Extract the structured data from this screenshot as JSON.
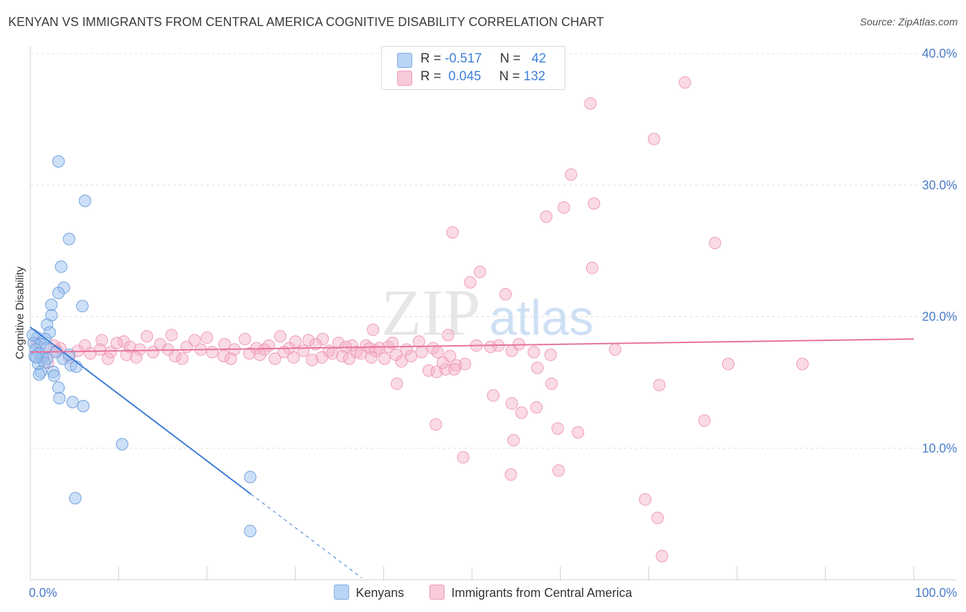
{
  "title": "KENYAN VS IMMIGRANTS FROM CENTRAL AMERICA COGNITIVE DISABILITY CORRELATION CHART",
  "source": "Source: ZipAtlas.com",
  "watermark": {
    "zip": "ZIP",
    "atlas": "atlas"
  },
  "colors": {
    "blue": "#9bc2f0",
    "blue_line": "#3a7ad6",
    "pink": "#f4aec8",
    "pink_line": "#e8709a",
    "tick": "#4a7cc8"
  },
  "legend": {
    "rows": [
      {
        "r_label": "R =",
        "r_value": "-0.517",
        "n_label": "N =",
        "n_value": "42"
      },
      {
        "r_label": "R =",
        "r_value": "0.045",
        "n_label": "N =",
        "n_value": "132"
      }
    ]
  },
  "bottom_legend": {
    "kenyans": "Kenyans",
    "central_america": "Immigrants from Central America"
  },
  "chart_data": {
    "type": "scatter",
    "ylabel": "Cognitive Disability",
    "xlim": [
      0,
      100
    ],
    "ylim": [
      0,
      40
    ],
    "x_tick_labels": [
      "0.0%",
      "100.0%"
    ],
    "y_ticks": [
      10,
      20,
      30,
      40
    ],
    "y_tick_labels": [
      "10.0%",
      "20.0%",
      "30.0%",
      "40.0%"
    ],
    "grid": "horizontal dashed",
    "legend_position": "top-center",
    "series": [
      {
        "name": "Kenyans",
        "trend": {
          "x0": 0,
          "y0": 19.2,
          "x1": 25,
          "y1": 6.5,
          "dash_to_x": 37.5
        },
        "points": [
          [
            3.2,
            31.8
          ],
          [
            6.2,
            28.8
          ],
          [
            4.4,
            25.9
          ],
          [
            3.5,
            23.8
          ],
          [
            3.8,
            22.2
          ],
          [
            3.2,
            21.8
          ],
          [
            2.4,
            20.9
          ],
          [
            5.9,
            20.8
          ],
          [
            2.4,
            20.1
          ],
          [
            1.9,
            19.4
          ],
          [
            2.2,
            18.8
          ],
          [
            0.8,
            18.4
          ],
          [
            1.7,
            18.3
          ],
          [
            0.4,
            18.0
          ],
          [
            1.2,
            17.9
          ],
          [
            0.6,
            17.5
          ],
          [
            1.8,
            17.6
          ],
          [
            1.0,
            17.2
          ],
          [
            0.5,
            17.0
          ],
          [
            1.4,
            16.9
          ],
          [
            1.9,
            16.8
          ],
          [
            3.7,
            16.8
          ],
          [
            4.4,
            17.1
          ],
          [
            0.9,
            16.4
          ],
          [
            1.6,
            16.5
          ],
          [
            4.6,
            16.3
          ],
          [
            5.2,
            16.2
          ],
          [
            1.2,
            15.8
          ],
          [
            2.6,
            15.8
          ],
          [
            1.0,
            15.6
          ],
          [
            2.7,
            15.5
          ],
          [
            3.2,
            14.6
          ],
          [
            3.3,
            13.8
          ],
          [
            4.8,
            13.5
          ],
          [
            6.0,
            13.2
          ],
          [
            10.4,
            10.3
          ],
          [
            5.1,
            6.2
          ],
          [
            24.9,
            7.8
          ],
          [
            24.9,
            3.7
          ],
          [
            0.3,
            18.6
          ],
          [
            2.9,
            17.3
          ],
          [
            0.7,
            16.9
          ]
        ]
      },
      {
        "name": "Immigrants from Central America",
        "trend": {
          "x0": 0,
          "y0": 17.3,
          "x1": 100,
          "y1": 18.3
        },
        "points": [
          [
            74.1,
            37.8
          ],
          [
            63.4,
            36.2
          ],
          [
            70.6,
            33.5
          ],
          [
            61.2,
            30.8
          ],
          [
            63.8,
            28.6
          ],
          [
            60.4,
            28.3
          ],
          [
            58.4,
            27.6
          ],
          [
            47.8,
            26.4
          ],
          [
            77.5,
            25.6
          ],
          [
            63.6,
            23.7
          ],
          [
            50.9,
            23.4
          ],
          [
            49.8,
            22.6
          ],
          [
            53.8,
            21.7
          ],
          [
            38.8,
            19.0
          ],
          [
            47.3,
            18.6
          ],
          [
            16.0,
            18.6
          ],
          [
            13.2,
            18.5
          ],
          [
            28.3,
            18.5
          ],
          [
            20.0,
            18.4
          ],
          [
            24.3,
            18.3
          ],
          [
            33.1,
            18.3
          ],
          [
            8.1,
            18.2
          ],
          [
            18.6,
            18.2
          ],
          [
            31.5,
            18.2
          ],
          [
            10.6,
            18.1
          ],
          [
            30.0,
            18.1
          ],
          [
            34.9,
            18.0
          ],
          [
            38.0,
            17.8
          ],
          [
            9.8,
            18.0
          ],
          [
            14.7,
            17.9
          ],
          [
            22.0,
            17.9
          ],
          [
            27.0,
            17.8
          ],
          [
            32.3,
            17.9
          ],
          [
            36.4,
            17.8
          ],
          [
            40.5,
            17.7
          ],
          [
            6.2,
            17.8
          ],
          [
            11.3,
            17.7
          ],
          [
            17.7,
            17.7
          ],
          [
            25.6,
            17.6
          ],
          [
            29.3,
            17.6
          ],
          [
            35.7,
            17.7
          ],
          [
            38.4,
            17.6
          ],
          [
            45.6,
            17.6
          ],
          [
            52.1,
            17.7
          ],
          [
            3.4,
            17.6
          ],
          [
            7.9,
            17.5
          ],
          [
            12.4,
            17.5
          ],
          [
            15.6,
            17.5
          ],
          [
            19.3,
            17.5
          ],
          [
            23.1,
            17.5
          ],
          [
            26.5,
            17.5
          ],
          [
            30.9,
            17.4
          ],
          [
            33.8,
            17.4
          ],
          [
            36.9,
            17.3
          ],
          [
            39.1,
            17.4
          ],
          [
            42.6,
            17.5
          ],
          [
            44.3,
            17.3
          ],
          [
            5.4,
            17.4
          ],
          [
            9.1,
            17.3
          ],
          [
            13.9,
            17.3
          ],
          [
            20.6,
            17.3
          ],
          [
            24.8,
            17.2
          ],
          [
            28.7,
            17.3
          ],
          [
            34.2,
            17.2
          ],
          [
            37.4,
            17.2
          ],
          [
            41.4,
            17.1
          ],
          [
            46.1,
            17.3
          ],
          [
            1.5,
            17.2
          ],
          [
            6.8,
            17.2
          ],
          [
            10.9,
            17.1
          ],
          [
            16.4,
            17.0
          ],
          [
            21.9,
            17.0
          ],
          [
            26.0,
            17.1
          ],
          [
            29.8,
            16.9
          ],
          [
            33.0,
            16.9
          ],
          [
            35.3,
            17.0
          ],
          [
            38.6,
            16.9
          ],
          [
            43.1,
            17.0
          ],
          [
            4.4,
            16.9
          ],
          [
            8.8,
            16.8
          ],
          [
            12.0,
            16.9
          ],
          [
            17.2,
            16.8
          ],
          [
            22.7,
            16.8
          ],
          [
            27.7,
            16.8
          ],
          [
            31.9,
            16.7
          ],
          [
            36.1,
            16.8
          ],
          [
            40.1,
            16.8
          ],
          [
            2.0,
            16.5
          ],
          [
            48.2,
            16.3
          ],
          [
            49.2,
            16.4
          ],
          [
            47.5,
            17.0
          ],
          [
            45.1,
            15.9
          ],
          [
            46.0,
            15.8
          ],
          [
            47.0,
            16.0
          ],
          [
            57.4,
            16.1
          ],
          [
            66.2,
            17.5
          ],
          [
            55.3,
            17.9
          ],
          [
            54.5,
            17.4
          ],
          [
            58.9,
            17.1
          ],
          [
            79.0,
            16.4
          ],
          [
            87.4,
            16.4
          ],
          [
            59.0,
            14.9
          ],
          [
            71.2,
            14.8
          ],
          [
            41.5,
            14.9
          ],
          [
            52.4,
            14.0
          ],
          [
            54.5,
            13.4
          ],
          [
            55.6,
            12.7
          ],
          [
            57.3,
            13.1
          ],
          [
            76.3,
            12.1
          ],
          [
            45.9,
            11.8
          ],
          [
            59.7,
            11.5
          ],
          [
            62.0,
            11.2
          ],
          [
            54.7,
            10.6
          ],
          [
            49.0,
            9.3
          ],
          [
            54.4,
            8.0
          ],
          [
            59.8,
            8.3
          ],
          [
            69.6,
            6.1
          ],
          [
            71.0,
            4.7
          ],
          [
            71.5,
            1.8
          ],
          [
            42.0,
            16.6
          ],
          [
            44.0,
            18.1
          ],
          [
            41.0,
            18.0
          ],
          [
            2.7,
            17.8
          ],
          [
            1.2,
            16.9
          ],
          [
            0.8,
            18.0
          ],
          [
            3.0,
            17.4
          ],
          [
            48.0,
            16.0
          ],
          [
            53.0,
            17.8
          ],
          [
            57.0,
            17.3
          ],
          [
            39.5,
            17.6
          ],
          [
            46.7,
            16.5
          ],
          [
            50.5,
            17.8
          ]
        ]
      }
    ]
  }
}
